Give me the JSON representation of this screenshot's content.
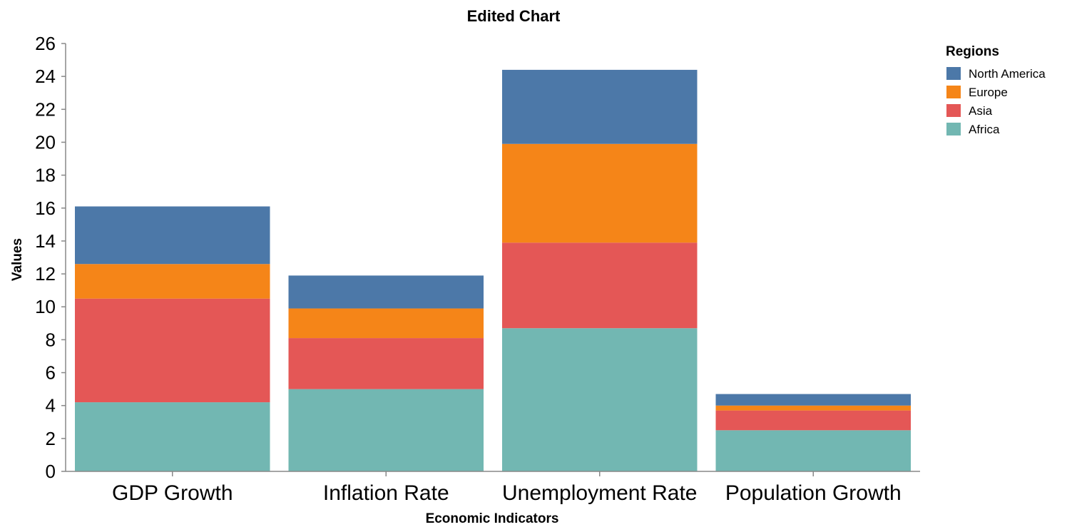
{
  "chart_data": {
    "type": "bar",
    "stacked": true,
    "title": "Edited Chart",
    "xlabel": "Economic Indicators",
    "ylabel": "Values",
    "ylim": [
      0,
      26
    ],
    "yticks": [
      "0",
      "2",
      "4",
      "6",
      "8",
      "10",
      "12",
      "14",
      "16",
      "18",
      "20",
      "22",
      "24",
      "26"
    ],
    "categories": [
      "GDP Growth",
      "Inflation Rate",
      "Unemployment Rate",
      "Population Growth"
    ],
    "legend": {
      "title": "Regions",
      "placement": "top-right"
    },
    "grid": false,
    "series": [
      {
        "name": "Africa",
        "color": "#72b7b2",
        "values": [
          4.2,
          5.0,
          8.7,
          2.5
        ]
      },
      {
        "name": "Asia",
        "color": "#e45756",
        "values": [
          6.3,
          3.1,
          5.2,
          1.2
        ]
      },
      {
        "name": "Europe",
        "color": "#f58518",
        "values": [
          2.1,
          1.8,
          6.0,
          0.3
        ]
      },
      {
        "name": "North America",
        "color": "#4c78a8",
        "values": [
          3.5,
          2.0,
          4.5,
          0.7
        ]
      }
    ],
    "legend_order": [
      "North America",
      "Europe",
      "Asia",
      "Africa"
    ]
  }
}
